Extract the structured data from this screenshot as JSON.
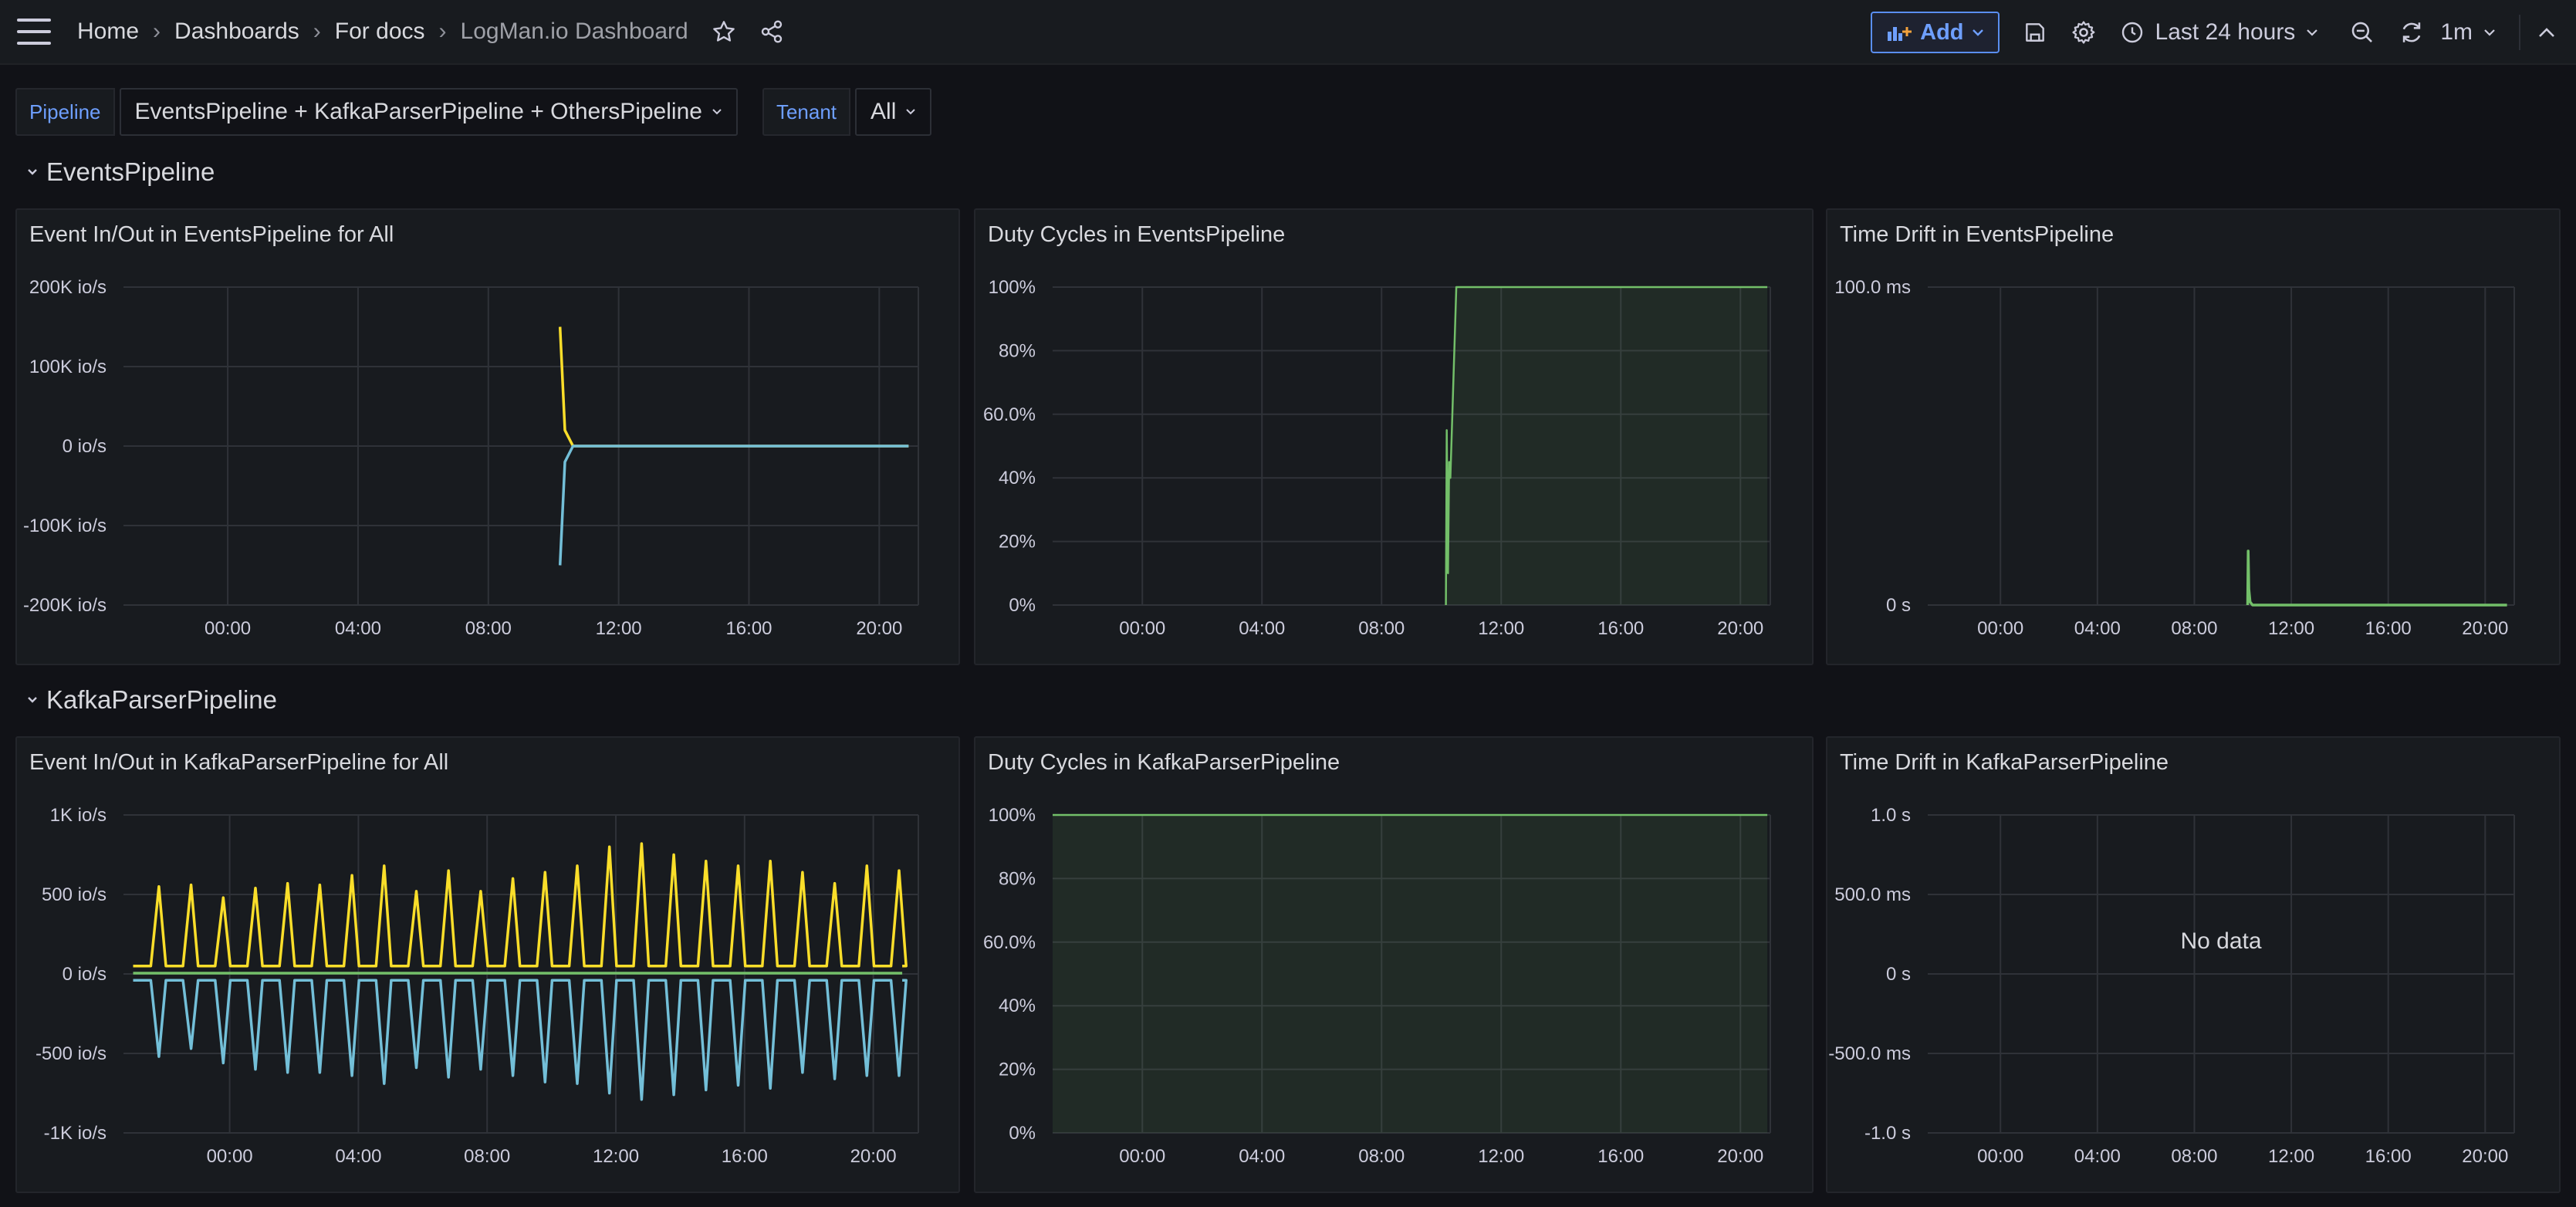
{
  "nav": {
    "breadcrumbs": [
      "Home",
      "Dashboards",
      "For docs",
      "LogMan.io Dashboard"
    ],
    "add_label": "Add",
    "time_range": "Last 24 hours",
    "refresh_interval": "1m"
  },
  "variables": [
    {
      "label": "Pipeline",
      "value": "EventsPipeline + KafkaParserPipeline + OthersPipeline"
    },
    {
      "label": "Tenant",
      "value": "All"
    }
  ],
  "rows": [
    {
      "title": "EventsPipeline"
    },
    {
      "title": "KafkaParserPipeline"
    }
  ],
  "colors": {
    "yellow": "#fade2a",
    "cyan": "#73bfd8",
    "green": "#73bf69",
    "accent": "#6e9fff"
  },
  "panels": [
    {
      "title": "Event In/Out in EventsPipeline for All",
      "no_data": "",
      "chart_data": {
        "type": "line",
        "x_ticks": [
          "00:00",
          "04:00",
          "08:00",
          "12:00",
          "16:00",
          "20:00"
        ],
        "y_ticks": [
          "200K io/s",
          "100K io/s",
          "0 io/s",
          "-100K io/s",
          "-200K io/s"
        ],
        "ylim": [
          -200000,
          200000
        ],
        "x": [
          10.2,
          10.35,
          10.6,
          11.0,
          14,
          17,
          20.9
        ],
        "series": [
          {
            "color": "#fade2a",
            "values": [
              150000,
              20000,
              0,
              0,
              0,
              0,
              0
            ]
          },
          {
            "color": "#73bfd8",
            "values": [
              -150000,
              -20000,
              0,
              0,
              0,
              0,
              0
            ]
          }
        ]
      }
    },
    {
      "title": "Duty Cycles in EventsPipeline",
      "no_data": "",
      "chart_data": {
        "type": "area",
        "x_ticks": [
          "00:00",
          "04:00",
          "08:00",
          "12:00",
          "16:00",
          "20:00"
        ],
        "y_ticks": [
          "100%",
          "80%",
          "60.0%",
          "40%",
          "20%",
          "0%"
        ],
        "ylim": [
          0,
          100
        ],
        "x": [
          10.15,
          10.18,
          10.22,
          10.26,
          10.3,
          10.5,
          20.9
        ],
        "series": [
          {
            "color": "#73bf69",
            "values": [
              0,
              55,
              10,
              45,
              40,
              100,
              100
            ]
          }
        ]
      }
    },
    {
      "title": "Time Drift in EventsPipeline",
      "no_data": "",
      "chart_data": {
        "type": "line",
        "x_ticks": [
          "00:00",
          "04:00",
          "08:00",
          "12:00",
          "16:00",
          "20:00"
        ],
        "y_ticks": [
          "100.0 ms",
          "0 s"
        ],
        "ylim": [
          0,
          100
        ],
        "x": [
          10.2,
          10.22,
          10.25,
          10.3,
          10.4,
          20.9
        ],
        "series": [
          {
            "color": "#73bf69",
            "values": [
              0,
              17,
              5,
              1,
              0,
              0
            ]
          }
        ]
      }
    },
    {
      "title": "Event In/Out in KafkaParserPipeline for All",
      "no_data": "",
      "chart_data": {
        "type": "line",
        "x_ticks": [
          "00:00",
          "04:00",
          "08:00",
          "12:00",
          "16:00",
          "20:00"
        ],
        "y_ticks": [
          "1K io/s",
          "500 io/s",
          "0 io/s",
          "-500 io/s",
          "-1K io/s"
        ],
        "ylim": [
          -1000,
          1000
        ],
        "x_start": -3.0,
        "x_end": 20.9,
        "spike_hours": [
          -2.2,
          -1.2,
          -0.2,
          0.8,
          1.8,
          2.8,
          3.8,
          4.8,
          5.8,
          6.8,
          7.8,
          8.8,
          9.8,
          10.8,
          11.8,
          12.8,
          13.8,
          14.8,
          15.8,
          16.8,
          17.8,
          18.8,
          19.8,
          20.8
        ],
        "series": [
          {
            "color": "#fade2a",
            "baseline": 50,
            "peaks": [
              550,
              560,
              480,
              540,
              570,
              560,
              620,
              680,
              520,
              650,
              520,
              600,
              640,
              680,
              800,
              820,
              750,
              710,
              680,
              710,
              640,
              570,
              680,
              650
            ]
          },
          {
            "color": "#73bfd8",
            "baseline": -40,
            "peaks": [
              -520,
              -470,
              -560,
              -600,
              -620,
              -620,
              -640,
              -690,
              -590,
              -650,
              -600,
              -640,
              -680,
              -690,
              -750,
              -790,
              -760,
              -730,
              -700,
              -720,
              -620,
              -660,
              -640,
              -640
            ]
          },
          {
            "color": "#73bf69",
            "baseline": 5,
            "peaks": []
          }
        ]
      }
    },
    {
      "title": "Duty Cycles in KafkaParserPipeline",
      "no_data": "",
      "chart_data": {
        "type": "area",
        "x_ticks": [
          "00:00",
          "04:00",
          "08:00",
          "12:00",
          "16:00",
          "20:00"
        ],
        "y_ticks": [
          "100%",
          "80%",
          "60.0%",
          "40%",
          "20%",
          "0%"
        ],
        "ylim": [
          0,
          100
        ],
        "x": [
          -3.0,
          20.9
        ],
        "series": [
          {
            "color": "#73bf69",
            "values": [
              100,
              100
            ]
          }
        ]
      }
    },
    {
      "title": "Time Drift in KafkaParserPipeline",
      "no_data": "No data",
      "chart_data": {
        "type": "line",
        "x_ticks": [
          "00:00",
          "04:00",
          "08:00",
          "12:00",
          "16:00",
          "20:00"
        ],
        "y_ticks": [
          "1.0 s",
          "500.0 ms",
          "0 s",
          "-500.0 ms",
          "-1.0 s"
        ],
        "ylim": [
          -1,
          1
        ],
        "series": []
      }
    }
  ]
}
